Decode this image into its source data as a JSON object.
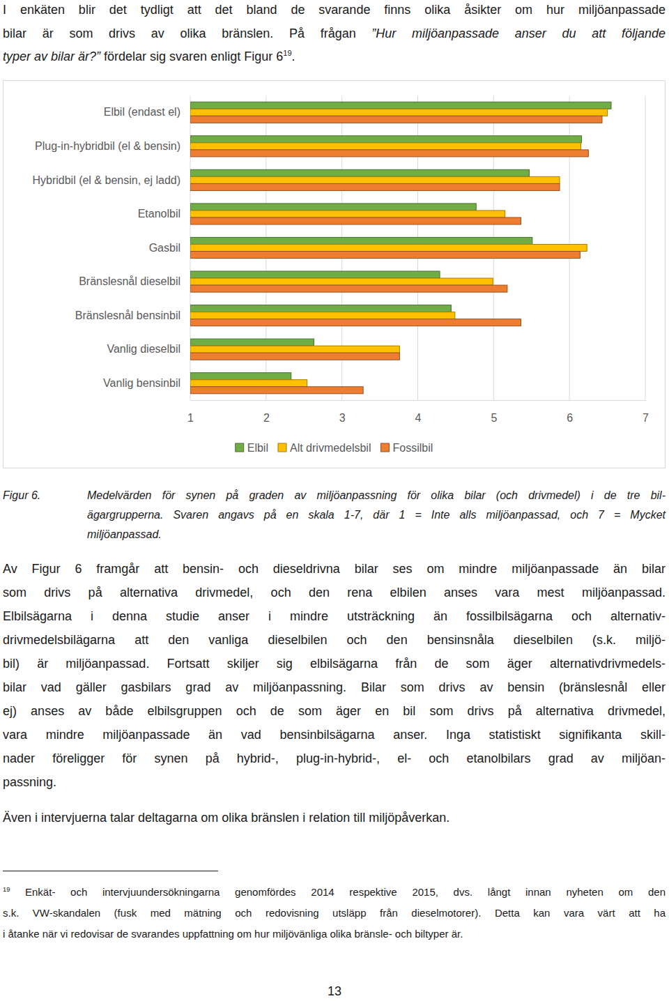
{
  "document": {
    "intro": {
      "lines": [
        [
          {
            "text": "I enkäten blir det tydligt att det bland de svarande finns olika åsikter om hur miljöanpassade"
          }
        ],
        [
          {
            "text": "bilar är som drivs av olika bränslen. På frågan "
          },
          {
            "text": "”Hur miljöanpassade anser du att följande",
            "italic": true
          }
        ],
        [
          {
            "text": "typer av bilar är?”",
            "italic": true
          },
          {
            "text": " fördelar sig svaren enligt Figur 6"
          },
          {
            "text": "19",
            "sup": true
          },
          {
            "text": "."
          }
        ]
      ]
    },
    "caption": {
      "label": "Figur 6.",
      "lines": [
        "Medelvärden för synen på graden av miljöanpassning för olika bilar (och drivmedel) i de tre bil-",
        "ägargrupperna. Svaren angavs på en skala 1-7, där 1 = Inte alls miljöanpassad, och 7 = Mycket",
        "miljöanpassad."
      ]
    },
    "body": [
      {
        "lines": [
          "Av Figur 6 framgår att bensin- och dieseldrivna bilar ses om mindre miljöanpassade än bilar",
          "som drivs på alternativa drivmedel, och den rena elbilen anses vara mest miljöanpassad.",
          "Elbilsägarna i denna studie anser i mindre utsträckning än fossilbilsägarna och alternativ-",
          "drivmedelsbilägarna att den vanliga dieselbilen och den bensinsnåla dieselbilen (s.k. miljö-",
          "bil) är miljöanpassad. Fortsatt skiljer sig elbilsägarna från de som äger alternativdrivmedels-",
          "bilar vad gäller gasbilars grad av miljöanpassning. Bilar som drivs av bensin (bränslesnål eller",
          "ej) anses av både elbilsgruppen och de som äger en bil som drivs på alternativa drivmedel,",
          "vara mindre miljöanpassade än vad bensinbilsägarna anser. Inga statistiskt signifikanta skill-",
          "nader föreligger för synen på hybrid-, plug-in-hybrid-, el- och etanolbilars grad av miljöan-",
          "passning."
        ]
      },
      {
        "lines": [
          "Även i intervjuerna talar deltagarna om olika bränslen i relation till miljöpåverkan."
        ]
      }
    ],
    "footnote": {
      "mark": "19",
      "lines": [
        " Enkät- och intervjuundersökningarna genomfördes 2014 respektive 2015, dvs. långt innan nyheten om den",
        "s.k. VW-skandalen (fusk med mätning och redovisning utsläpp från dieselmotorer). Detta kan vara värt att ha",
        "i åtanke när vi redovisar de svarandes uppfattning om hur miljövänliga olika bränsle- och biltyper är."
      ]
    },
    "page_number": "13"
  },
  "chart_data": {
    "type": "bar",
    "orientation": "horizontal",
    "categories": [
      "Elbil (endast el)",
      "Plug-in-hybridbil (el & bensin)",
      "Hybridbil (el & bensin, ej ladd)",
      "Etanolbil",
      "Gasbil",
      "Bränslesnål dieselbil",
      "Bränslesnål bensinbil",
      "Vanlig dieselbil",
      "Vanlig bensinbil"
    ],
    "series": [
      {
        "name": "Elbil",
        "color": "#70ad47",
        "values": [
          6.55,
          6.16,
          5.47,
          4.77,
          5.51,
          4.29,
          4.44,
          2.63,
          2.33
        ]
      },
      {
        "name": "Alt drivmedelsbil",
        "color": "#ffc000",
        "values": [
          6.5,
          6.15,
          5.87,
          5.15,
          6.23,
          4.99,
          4.49,
          3.76,
          2.54
        ]
      },
      {
        "name": "Fossilbil",
        "color": "#ed7d31",
        "values": [
          6.43,
          6.25,
          5.87,
          5.36,
          6.14,
          5.18,
          5.36,
          3.76,
          3.28
        ]
      }
    ],
    "xlim": [
      1,
      7
    ],
    "xticks": [
      1,
      2,
      3,
      4,
      5,
      6,
      7
    ],
    "grid": true,
    "legend": "bottom"
  }
}
